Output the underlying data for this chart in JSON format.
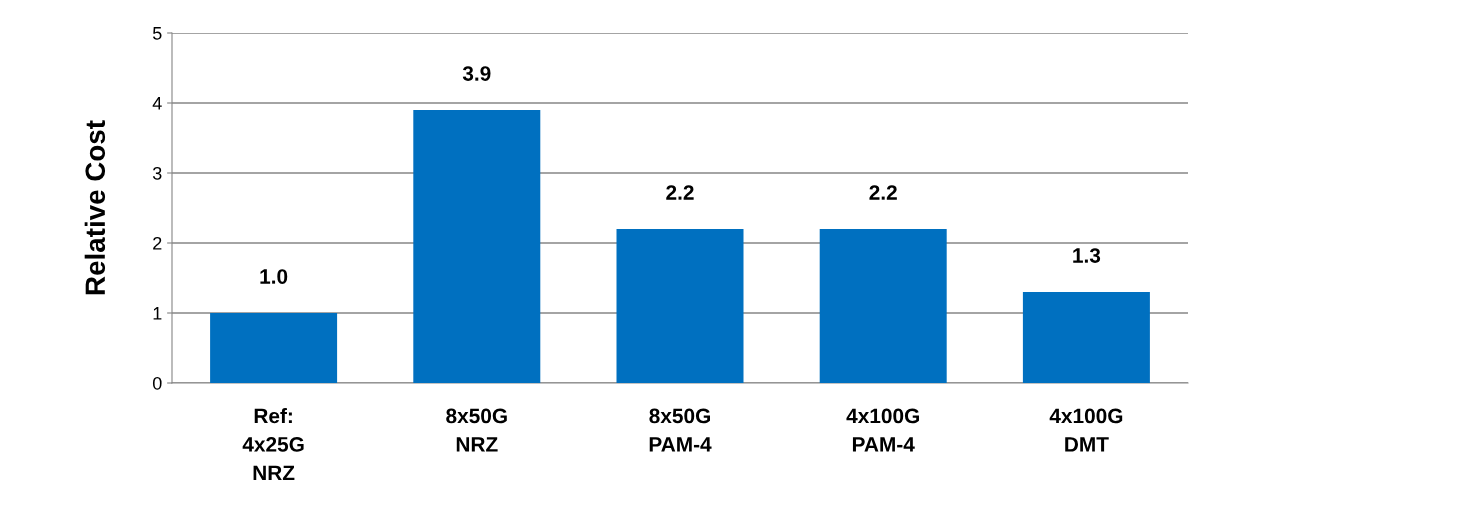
{
  "chart_data": {
    "type": "bar",
    "ylabel": "Relative Cost",
    "categories": [
      "Ref:\n4x25G\nNRZ",
      "8x50G\nNRZ",
      "8x50G\nPAM-4",
      "4x100G\nPAM-4",
      "4x100G\nDMT"
    ],
    "values": [
      1.0,
      3.9,
      2.2,
      2.2,
      1.3
    ],
    "value_labels": [
      "1.0",
      "3.9",
      "2.2",
      "2.2",
      "1.3"
    ],
    "color": "#0070c0",
    "ylim": [
      0,
      5
    ],
    "yticks": [
      0,
      1,
      2,
      3,
      4,
      5
    ],
    "grid": "y"
  }
}
